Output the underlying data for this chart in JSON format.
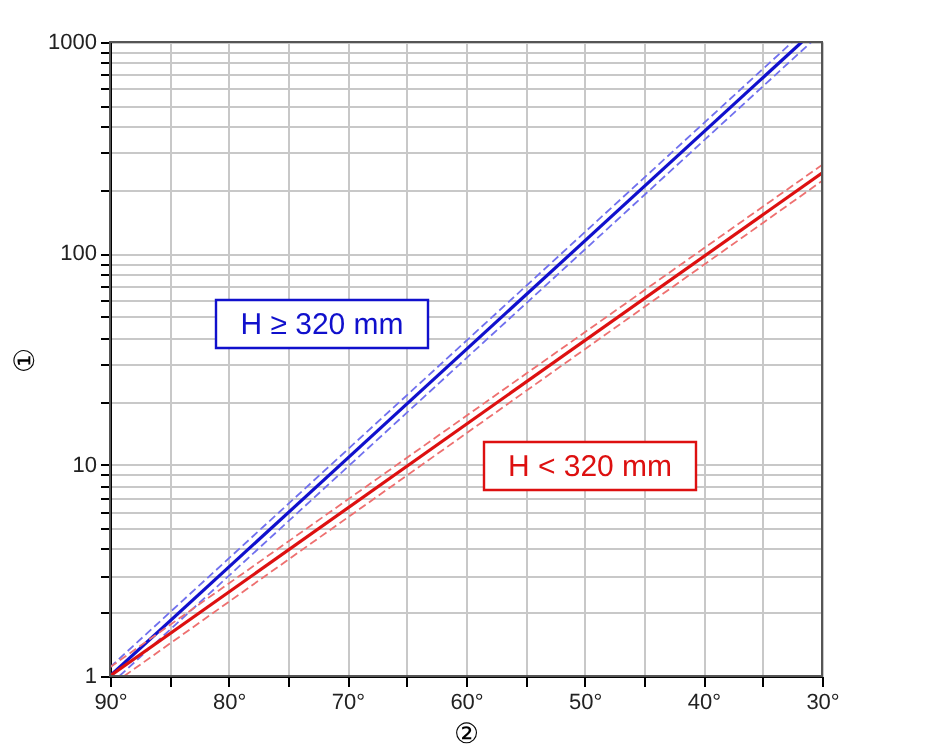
{
  "chart_data": {
    "type": "line",
    "xlabel": "②",
    "ylabel": "①",
    "log": "y",
    "grid": true,
    "xlim": [
      90,
      30
    ],
    "ylim": [
      1,
      1000
    ],
    "xticks": [
      {
        "value": 90,
        "label": "90°"
      },
      {
        "value": 85,
        "label": null
      },
      {
        "value": 80,
        "label": "80°"
      },
      {
        "value": 75,
        "label": null
      },
      {
        "value": 70,
        "label": "70°"
      },
      {
        "value": 65,
        "label": null
      },
      {
        "value": 60,
        "label": "60°"
      },
      {
        "value": 55,
        "label": null
      },
      {
        "value": 50,
        "label": "50°"
      },
      {
        "value": 45,
        "label": null
      },
      {
        "value": 40,
        "label": "40°"
      },
      {
        "value": 35,
        "label": null
      },
      {
        "value": 30,
        "label": "30°"
      }
    ],
    "yticks": [
      1,
      {
        "value": 2,
        "label": null
      },
      {
        "value": 3,
        "label": null
      },
      {
        "value": 4,
        "label": null
      },
      {
        "value": 5,
        "label": null
      },
      {
        "value": 6,
        "label": null
      },
      {
        "value": 7,
        "label": null
      },
      {
        "value": 8,
        "label": null
      },
      {
        "value": 9,
        "label": null
      },
      10,
      {
        "value": 20,
        "label": null
      },
      {
        "value": 30,
        "label": null
      },
      {
        "value": 40,
        "label": null
      },
      {
        "value": 50,
        "label": null
      },
      {
        "value": 60,
        "label": null
      },
      {
        "value": 70,
        "label": null
      },
      {
        "value": 80,
        "label": null
      },
      {
        "value": 90,
        "label": null
      },
      100,
      {
        "value": 200,
        "label": null
      },
      {
        "value": 300,
        "label": null
      },
      {
        "value": 400,
        "label": null
      },
      {
        "value": 500,
        "label": null
      },
      {
        "value": 600,
        "label": null
      },
      {
        "value": 700,
        "label": null
      },
      {
        "value": 800,
        "label": null
      },
      {
        "value": 900,
        "label": null
      },
      1000
    ],
    "series": [
      {
        "name": "H ≥ 320 mm",
        "color": "#1010cc",
        "line_style": "solid",
        "x": [
          90,
          31.7
        ],
        "values": [
          1,
          1000
        ]
      },
      {
        "color": "#7070ee",
        "line_style": "dashed",
        "x": [
          90,
          32.5
        ],
        "values": [
          1.1,
          1000
        ]
      },
      {
        "color": "#7070ee",
        "line_style": "dashed",
        "x": [
          89.2,
          30.9
        ],
        "values": [
          1,
          1000
        ]
      },
      {
        "name": "H < 320 mm",
        "color": "#dd1010",
        "line_style": "solid",
        "x": [
          90,
          30
        ],
        "values": [
          1,
          240
        ]
      },
      {
        "color": "#ee7070",
        "line_style": "dashed",
        "x": [
          90,
          30
        ],
        "values": [
          1.1,
          262
        ]
      },
      {
        "color": "#ee7070",
        "line_style": "dashed",
        "x": [
          88.8,
          30
        ],
        "values": [
          1,
          220
        ]
      }
    ]
  }
}
